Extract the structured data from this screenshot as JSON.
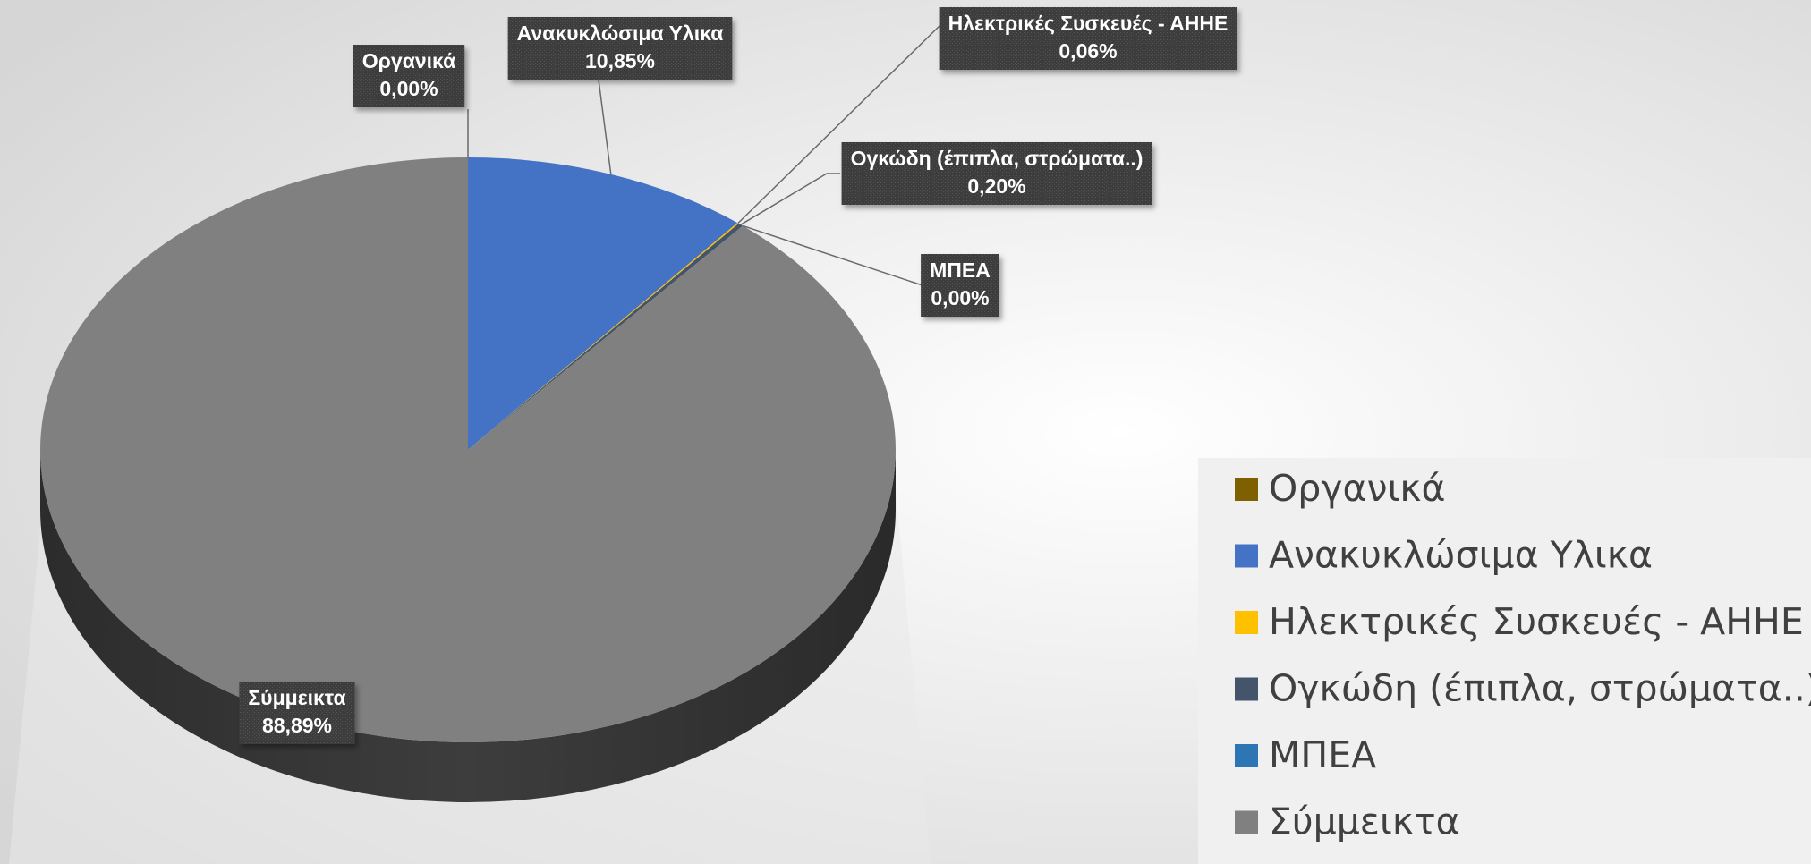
{
  "chart_data": {
    "type": "pie3d",
    "categories": [
      "Οργανικά",
      "Ανακυκλώσιμα Υλικα",
      "Ηλεκτρικές Συσκευές - ΑΗΗΕ",
      "Ογκώδη (έπιπλα, στρώματα..)",
      "ΜΠΕΑ",
      "Σύμμεικτα"
    ],
    "values": [
      0,
      10.85,
      0.06,
      0.2,
      0,
      88.89
    ],
    "value_labels": [
      "0,00%",
      "10,85%",
      "0,06%",
      "0,20%",
      "0,00%",
      "88,89%"
    ],
    "colors": [
      "#7f6000",
      "#4472c4",
      "#ffc000",
      "#44546a",
      "#2e75b6",
      "#808080"
    ],
    "legend": "right"
  }
}
